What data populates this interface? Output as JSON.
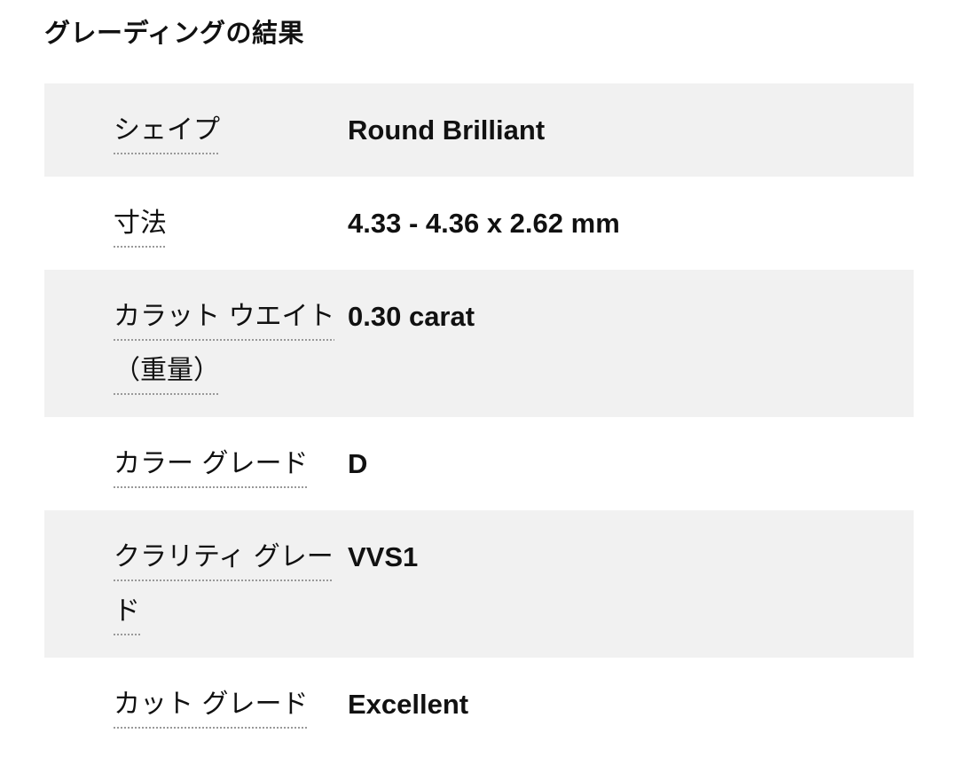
{
  "title": "グレーディングの結果",
  "rows": [
    {
      "label": "シェイプ",
      "value": "Round Brilliant"
    },
    {
      "label": "寸法",
      "value": "4.33 - 4.36 x 2.62 mm"
    },
    {
      "label": "カラット ウエイト（重量）",
      "value": "0.30 carat"
    },
    {
      "label": "カラー グレード",
      "value": "D"
    },
    {
      "label": "クラリティ グレード",
      "value": "VVS1"
    },
    {
      "label": "カット グレード",
      "value": "Excellent"
    }
  ]
}
